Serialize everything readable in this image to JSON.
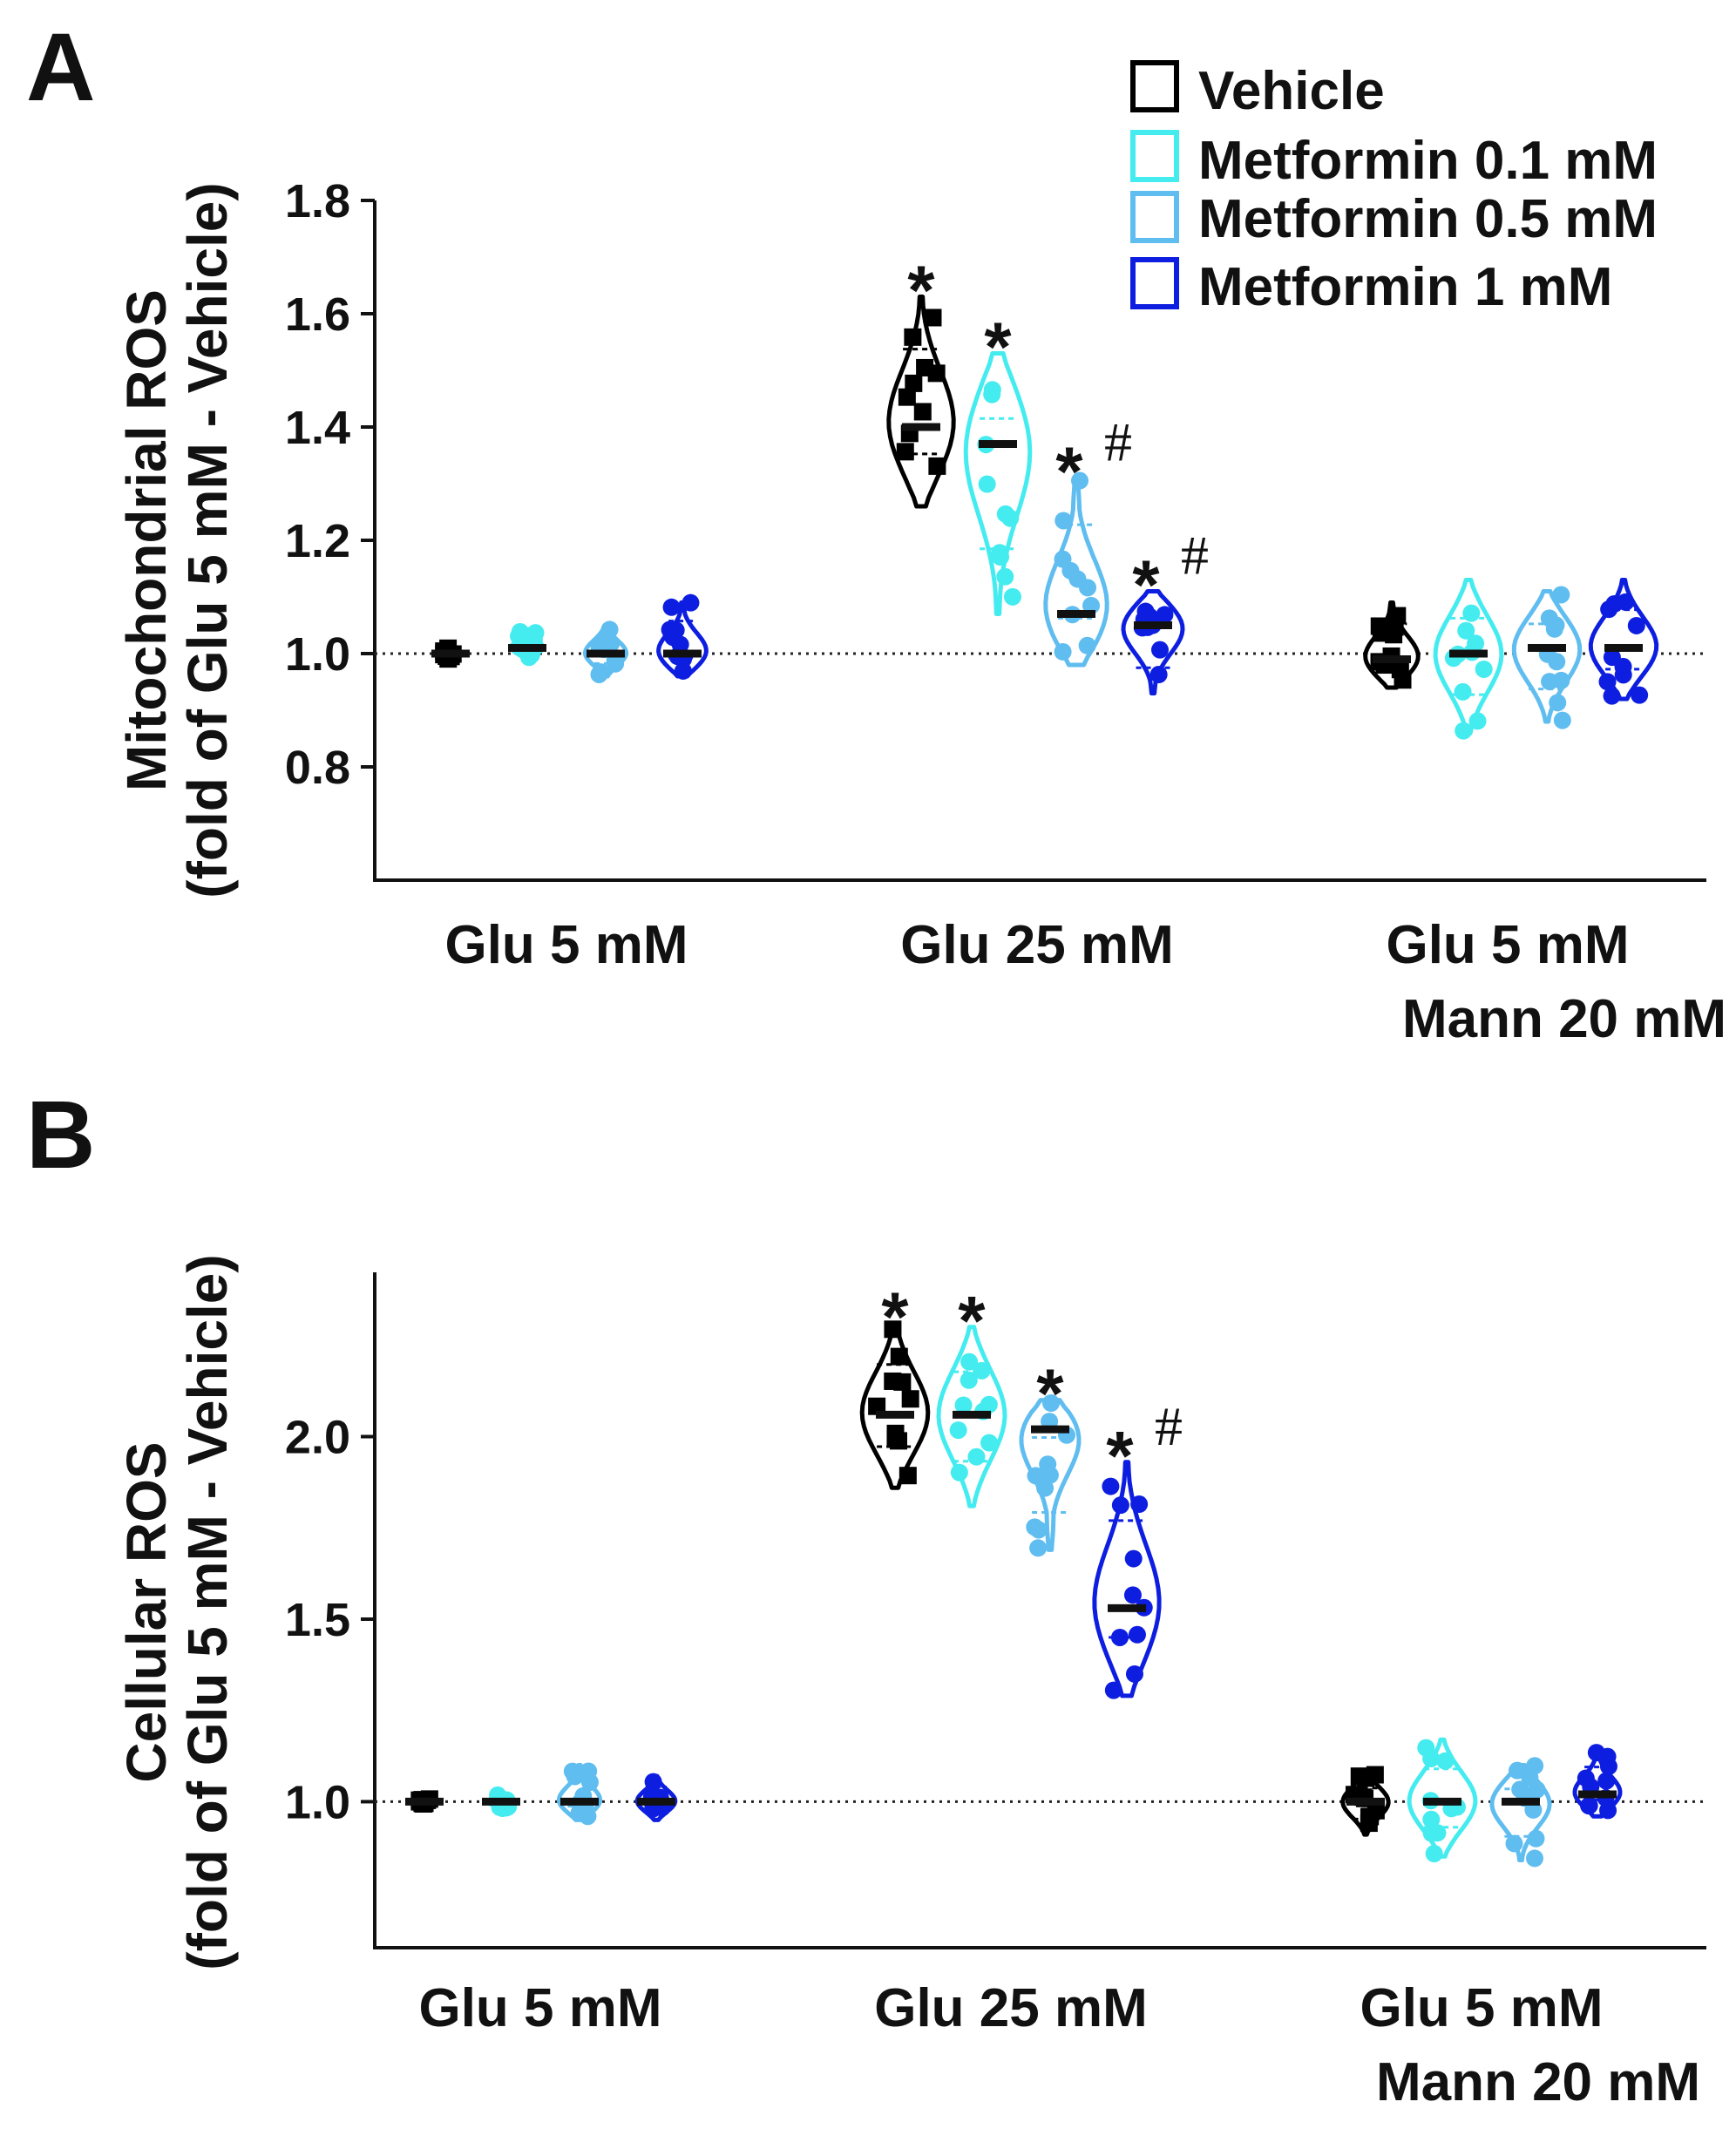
{
  "legend": [
    {
      "label": "Vehicle",
      "color": "#000000"
    },
    {
      "label": "Metformin 0.1 mM",
      "color": "#44ecf0"
    },
    {
      "label": "Metformin 0.5 mM",
      "color": "#5fbdf0"
    },
    {
      "label": "Metformin 1 mM",
      "color": "#0d1ee0"
    }
  ],
  "chart_data": [
    {
      "panel": "A",
      "type": "violin",
      "ylabel": "Mitochondrial ROS",
      "ylabel2": "(fold of Glu 5 mM - Vehicle)",
      "ylim": [
        0.6,
        1.8
      ],
      "yticks": [
        "0.8",
        "1.0",
        "1.2",
        "1.4",
        "1.6",
        "1.8"
      ],
      "reference_line": 1.0,
      "categories": [
        {
          "lines": [
            "Glu 5 mM"
          ]
        },
        {
          "lines": [
            "Glu 25 mM"
          ]
        },
        {
          "lines": [
            "Glu 5 mM",
            "Mann 20 mM"
          ]
        }
      ],
      "series": [
        {
          "name": "Vehicle",
          "marker": "square",
          "groups": [
            {
              "median": 1.0,
              "min": 0.99,
              "max": 1.01,
              "significance": ""
            },
            {
              "median": 1.4,
              "min": 1.26,
              "max": 1.63,
              "significance": "*"
            },
            {
              "median": 0.99,
              "min": 0.94,
              "max": 1.09,
              "significance": ""
            }
          ]
        },
        {
          "name": "Metformin 0.1 mM",
          "marker": "circle",
          "groups": [
            {
              "median": 1.01,
              "min": 0.99,
              "max": 1.04,
              "significance": ""
            },
            {
              "median": 1.37,
              "min": 1.07,
              "max": 1.53,
              "significance": "*"
            },
            {
              "median": 1.0,
              "min": 0.86,
              "max": 1.13,
              "significance": ""
            }
          ]
        },
        {
          "name": "Metformin 0.5 mM",
          "marker": "circle",
          "groups": [
            {
              "median": 1.0,
              "min": 0.96,
              "max": 1.05,
              "significance": ""
            },
            {
              "median": 1.07,
              "min": 0.98,
              "max": 1.31,
              "significance": "*#"
            },
            {
              "median": 1.01,
              "min": 0.88,
              "max": 1.11,
              "significance": ""
            }
          ]
        },
        {
          "name": "Metformin 1 mM",
          "marker": "circle",
          "groups": [
            {
              "median": 1.0,
              "min": 0.96,
              "max": 1.09,
              "significance": ""
            },
            {
              "median": 1.05,
              "min": 0.93,
              "max": 1.11,
              "significance": "*#"
            },
            {
              "median": 1.01,
              "min": 0.92,
              "max": 1.13,
              "significance": ""
            }
          ]
        }
      ]
    },
    {
      "panel": "B",
      "type": "violin",
      "ylabel": "Cellular ROS",
      "ylabel2": "(fold of Glu 5 mM - Vehicle)",
      "ylim": [
        0.6,
        2.45
      ],
      "yticks": [
        "1.0",
        "1.5",
        "2.0"
      ],
      "reference_line": 1.0,
      "categories": [
        {
          "lines": [
            "Glu 5 mM"
          ]
        },
        {
          "lines": [
            "Glu 25 mM"
          ]
        },
        {
          "lines": [
            "Glu 5 mM",
            "Mann 20 mM"
          ]
        }
      ],
      "series": [
        {
          "name": "Vehicle",
          "marker": "square",
          "groups": [
            {
              "median": 1.0,
              "min": 0.99,
              "max": 1.01,
              "significance": ""
            },
            {
              "median": 2.06,
              "min": 1.86,
              "max": 2.31,
              "significance": "*"
            },
            {
              "median": 1.0,
              "min": 0.91,
              "max": 1.08,
              "significance": ""
            }
          ]
        },
        {
          "name": "Metformin 0.1 mM",
          "marker": "circle",
          "groups": [
            {
              "median": 1.0,
              "min": 0.98,
              "max": 1.02,
              "significance": ""
            },
            {
              "median": 2.06,
              "min": 1.81,
              "max": 2.3,
              "significance": "*"
            },
            {
              "median": 1.0,
              "min": 0.85,
              "max": 1.17,
              "significance": ""
            }
          ]
        },
        {
          "name": "Metformin 0.5 mM",
          "marker": "circle",
          "groups": [
            {
              "median": 1.0,
              "min": 0.95,
              "max": 1.1,
              "significance": ""
            },
            {
              "median": 2.02,
              "min": 1.69,
              "max": 2.1,
              "significance": "*"
            },
            {
              "median": 1.0,
              "min": 0.84,
              "max": 1.1,
              "significance": ""
            }
          ]
        },
        {
          "name": "Metformin 1 mM",
          "marker": "circle",
          "groups": [
            {
              "median": 1.0,
              "min": 0.95,
              "max": 1.07,
              "significance": ""
            },
            {
              "median": 1.53,
              "min": 1.29,
              "max": 1.93,
              "significance": "*#"
            },
            {
              "median": 1.02,
              "min": 0.96,
              "max": 1.14,
              "significance": ""
            }
          ]
        }
      ]
    }
  ]
}
